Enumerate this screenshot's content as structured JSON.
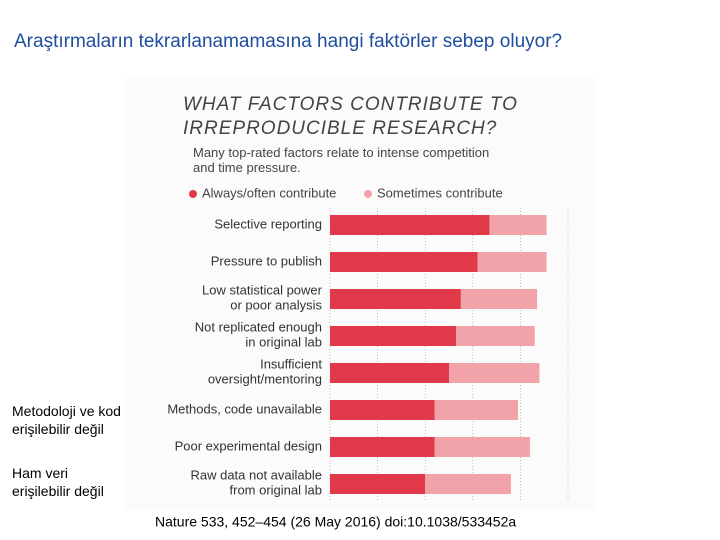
{
  "slide": {
    "title": "Araştırmaların tekrarlanamamasına hangi faktörler sebep oluyor?",
    "notes": [
      "Metodoloji ve kod\nerişilebilir değil",
      "Ham veri\nerişilebilir değil"
    ],
    "citation": "Nature 533, 452–454 (26 May 2016) doi:10.1038/533452a"
  },
  "chart_data": {
    "type": "stacked_bar_horizontal",
    "title": "WHAT FACTORS CONTRIBUTE TO\nIRREPRODUCIBLE RESEARCH?",
    "subtitle": "Many top-rated factors relate to intense competition\nand time pressure.",
    "categories": [
      "Selective reporting",
      "Pressure to publish",
      "Low statistical power\nor poor analysis",
      "Not replicated enough\nin original lab",
      "Insufficient\noversight/mentoring",
      "Methods, code unavailable",
      "Poor experimental design",
      "Raw data not available\nfrom original lab"
    ],
    "series": [
      {
        "name": "Always/often contribute",
        "color": "#e03a4a",
        "values": [
          67,
          62,
          55,
          53,
          50,
          44,
          44,
          40
        ]
      },
      {
        "name": "Sometimes contribute",
        "color": "#f2a3a9",
        "values": [
          24,
          29,
          32,
          33,
          38,
          35,
          40,
          36
        ]
      }
    ],
    "grid": true
  }
}
